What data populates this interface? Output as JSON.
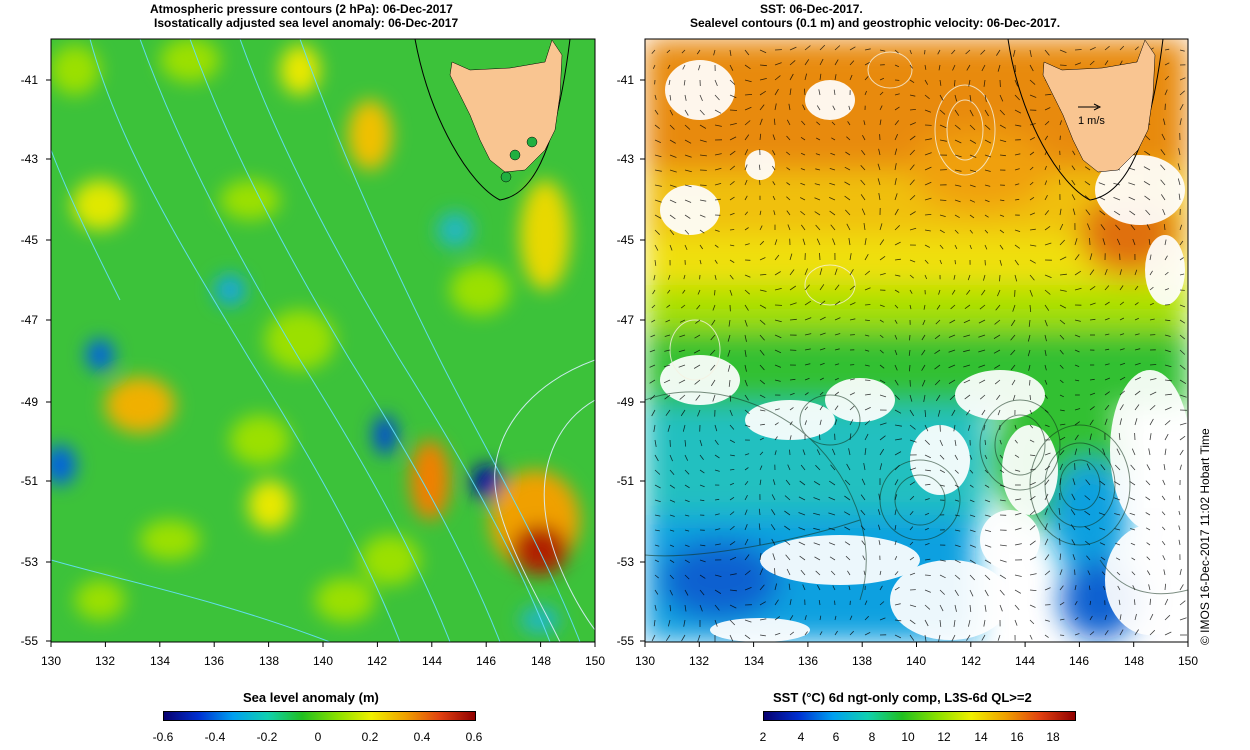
{
  "left_panel": {
    "title_line1": "Atmospheric pressure contours (2 hPa): 06-Dec-2017",
    "title_line2": "Isostatically adjusted sea level anomaly: 06-Dec-2017",
    "colorbar_title": "Sea level anomaly (m)",
    "colorbar_ticks": [
      "-0.6",
      "-0.4",
      "-0.2",
      "0",
      "0.2",
      "0.4",
      "0.6"
    ]
  },
  "right_panel": {
    "title_line1": "SST: 06-Dec-2017.",
    "title_line2": "Sealevel contours (0.1 m) and geostrophic velocity: 06-Dec-2017.",
    "colorbar_title": "SST (°C) 6d ngt-only comp, L3S-6d QL>=2",
    "colorbar_ticks": [
      "2",
      "4",
      "6",
      "8",
      "10",
      "12",
      "14",
      "16",
      "18"
    ],
    "scale_arrow_label": "1 m/s"
  },
  "axes": {
    "lon_ticks": [
      "130",
      "132",
      "134",
      "136",
      "138",
      "140",
      "142",
      "144",
      "146",
      "148",
      "150"
    ],
    "lat_ticks": [
      "-41",
      "-43",
      "-45",
      "-47",
      "-49",
      "-51",
      "-53",
      "-55"
    ]
  },
  "credit": "© IMOS 16-Dec-2017 11:02 Hobart Time",
  "colors": {
    "land": "#f9c591",
    "left_base": "#3cc23a",
    "pressure_contour": "#66e0ff"
  }
}
